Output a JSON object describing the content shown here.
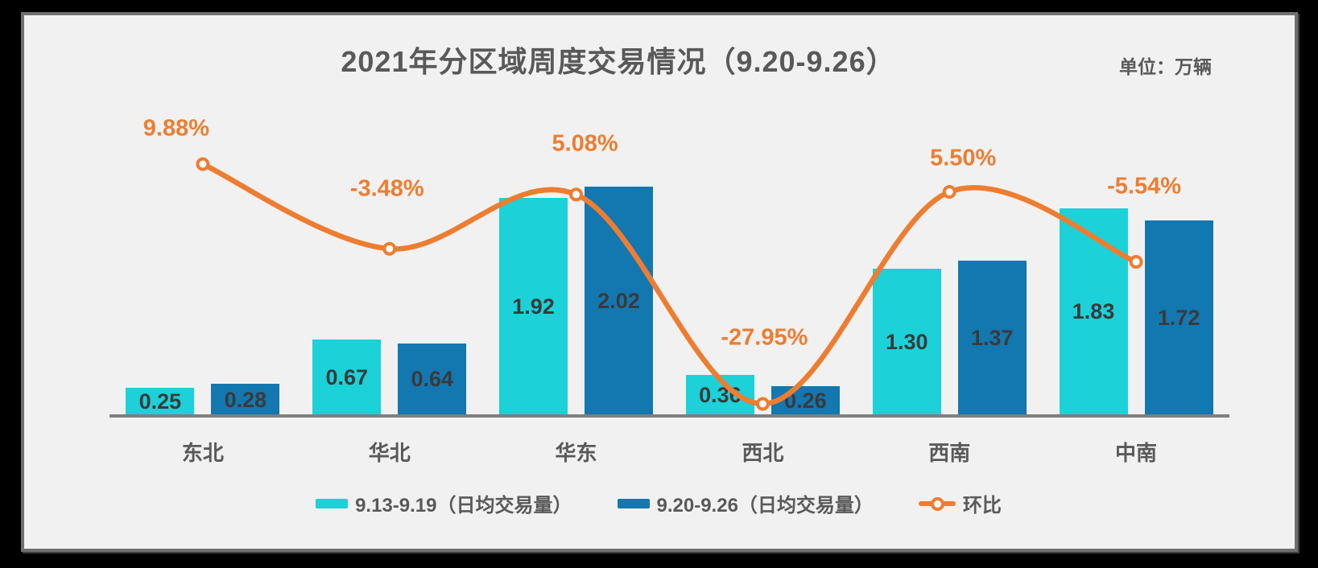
{
  "frame": {
    "outer_background": "#000000",
    "panel_background": "#F1F1F1",
    "panel_border_color": "#6F6F6F",
    "axis_color": "#7F7F7F"
  },
  "header": {
    "title": "2021年分区域周度交易情况（9.20-9.26）",
    "unit_label": "单位：万辆"
  },
  "chart_data": {
    "type": "combo-bar-line",
    "categories": [
      "东北",
      "华北",
      "华东",
      "西北",
      "西南",
      "中南"
    ],
    "bar_series": [
      {
        "name": "9.13-9.19（日均交易量）",
        "color": "#1CD1D8",
        "values": [
          0.25,
          0.67,
          1.92,
          0.36,
          1.3,
          1.83
        ],
        "labels": [
          "0.25",
          "0.67",
          "1.92",
          "0.36",
          "1.30",
          "1.83"
        ]
      },
      {
        "name": "9.20-9.26（日均交易量）",
        "color": "#1377B0",
        "values": [
          0.28,
          0.64,
          2.02,
          0.26,
          1.37,
          1.72
        ],
        "labels": [
          "0.28",
          "0.64",
          "2.02",
          "0.26",
          "1.37",
          "1.72"
        ]
      }
    ],
    "line_series": {
      "name": "环比",
      "color": "#ED7D31",
      "marker": "circle-white-fill-orange-ring",
      "values_pct": [
        9.88,
        -3.48,
        5.08,
        -27.95,
        5.5,
        -5.54
      ],
      "labels": [
        "9.88%",
        "-3.48%",
        "5.08%",
        "-27.95%",
        "5.50%",
        "-5.54%"
      ]
    },
    "value_label_color": "#3A3A3A",
    "category_label_color": "#595959",
    "grid": false,
    "value_axis_visible": false,
    "legend_position": "bottom",
    "legend_entries": [
      "9.13-9.19（日均交易量）",
      "9.20-9.26（日均交易量）",
      "环比"
    ]
  }
}
